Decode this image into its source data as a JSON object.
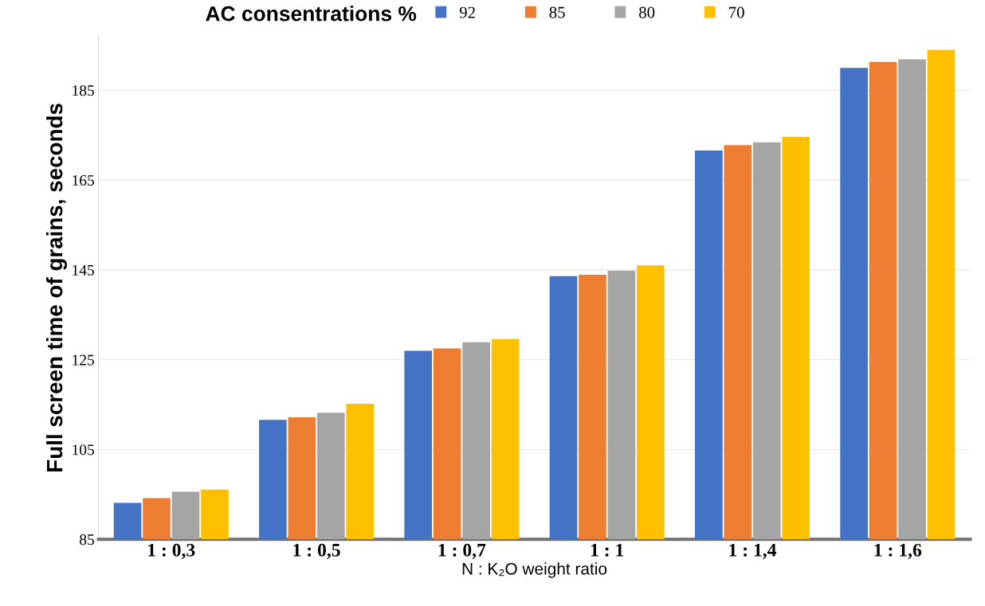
{
  "chart_data": {
    "type": "bar",
    "categories": [
      "1 : 0,3",
      "1 : 0,5",
      "1 : 0,7",
      "1 : 1",
      "1 : 1,4",
      "1 : 1,6"
    ],
    "series": [
      {
        "name": "92",
        "color": "#4472c4",
        "values": [
          93.1,
          111.6,
          127.0,
          143.6,
          171.6,
          190.0
        ]
      },
      {
        "name": "85",
        "color": "#ed7d31",
        "values": [
          94.2,
          112.2,
          127.5,
          143.9,
          172.8,
          191.3
        ]
      },
      {
        "name": "80",
        "color": "#a5a5a5",
        "values": [
          95.6,
          113.2,
          128.9,
          144.8,
          173.4,
          191.9
        ]
      },
      {
        "name": "70",
        "color": "#ffc000",
        "values": [
          96.1,
          115.2,
          129.6,
          146.0,
          174.6,
          194.0
        ]
      }
    ],
    "ylabel": "Full screen time of grains, seconds",
    "xlabel": "N : K₂O weight ratio",
    "legend_title": "AC consentrations %",
    "ylim": [
      85,
      197
    ],
    "yticks": [
      85,
      105,
      125,
      145,
      165,
      185
    ],
    "grid": "y",
    "legend": "top"
  }
}
